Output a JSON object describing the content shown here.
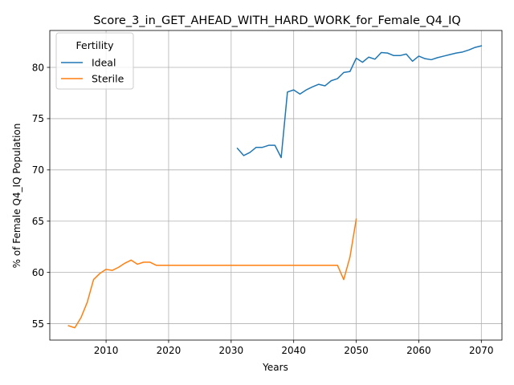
{
  "chart_data": {
    "type": "line",
    "title": "Score_3_in_GET_AHEAD_WITH_HARD_WORK_for_Female_Q4_IQ",
    "xlabel": "Years",
    "ylabel": "% of Female Q4_IQ Population",
    "xlim": [
      2001,
      2073.3
    ],
    "ylim": [
      53.4,
      83.6
    ],
    "xticks": [
      2010,
      2020,
      2030,
      2040,
      2050,
      2060,
      2070
    ],
    "yticks": [
      55,
      60,
      65,
      70,
      75,
      80
    ],
    "grid": true,
    "legend": {
      "title": "Fertility",
      "position": "top-left"
    },
    "series": [
      {
        "name": "Ideal",
        "color": "#1f77b4",
        "x": [
          2031,
          2032,
          2033,
          2034,
          2035,
          2036,
          2037,
          2038,
          2039,
          2040,
          2041,
          2042,
          2043,
          2044,
          2045,
          2046,
          2047,
          2048,
          2049,
          2050,
          2051,
          2052,
          2053,
          2054,
          2055,
          2056,
          2057,
          2058,
          2059,
          2060,
          2061,
          2062,
          2063,
          2064,
          2065,
          2066,
          2067,
          2068,
          2069,
          2070
        ],
        "y": [
          72.1,
          71.4,
          71.7,
          72.2,
          72.2,
          72.4,
          72.4,
          71.2,
          77.6,
          77.8,
          77.4,
          77.8,
          78.1,
          78.35,
          78.2,
          78.7,
          78.9,
          79.5,
          79.6,
          80.9,
          80.5,
          81.0,
          80.8,
          81.45,
          81.4,
          81.15,
          81.15,
          81.3,
          80.6,
          81.1,
          80.85,
          80.75,
          80.95,
          81.1,
          81.25,
          81.4,
          81.5,
          81.7,
          81.95,
          82.1
        ]
      },
      {
        "name": "Sterile",
        "color": "#ff7f0e",
        "x": [
          2004,
          2005,
          2006,
          2007,
          2008,
          2009,
          2010,
          2011,
          2012,
          2013,
          2014,
          2015,
          2016,
          2017,
          2018,
          2019,
          2020,
          2021,
          2022,
          2023,
          2024,
          2025,
          2026,
          2027,
          2028,
          2029,
          2030,
          2031,
          2032,
          2033,
          2034,
          2035,
          2036,
          2037,
          2038,
          2039,
          2040,
          2041,
          2042,
          2043,
          2044,
          2045,
          2046,
          2047,
          2048,
          2049,
          2050
        ],
        "y": [
          54.8,
          54.6,
          55.6,
          57.1,
          59.3,
          59.9,
          60.3,
          60.2,
          60.5,
          60.9,
          61.2,
          60.8,
          61.0,
          61.0,
          60.7,
          60.7,
          60.7,
          60.7,
          60.7,
          60.7,
          60.7,
          60.7,
          60.7,
          60.7,
          60.7,
          60.7,
          60.7,
          60.7,
          60.7,
          60.7,
          60.7,
          60.7,
          60.7,
          60.7,
          60.7,
          60.7,
          60.7,
          60.7,
          60.7,
          60.7,
          60.7,
          60.7,
          60.7,
          60.7,
          59.3,
          61.5,
          65.2
        ]
      }
    ]
  }
}
